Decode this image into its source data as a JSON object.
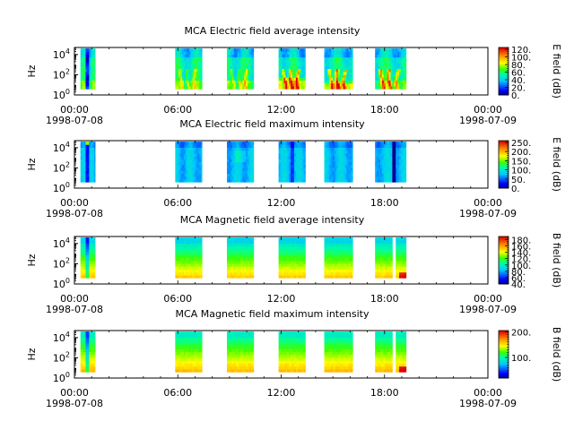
{
  "chart_data": [
    {
      "type": "heatmap",
      "title": "MCA  Electric field average intensity",
      "ylabel": "Hz",
      "y_ticks": [
        {
          "base": "10",
          "exp": "0"
        },
        {
          "base": "10",
          "exp": "2"
        },
        {
          "base": "10",
          "exp": "4"
        }
      ],
      "ylim_log10": [
        0,
        4.7
      ],
      "x_ticks": [
        "00:00",
        "06:00",
        "12:00",
        "18:00",
        "00:00"
      ],
      "x_tick_hours": [
        0,
        6,
        12,
        18,
        24
      ],
      "x_dates": [
        "1998-07-08",
        "1998-07-09"
      ],
      "colorbar": {
        "label": "E field (dB)",
        "min": 0,
        "max": 125,
        "ticks": [
          "0.",
          "20.",
          "40.",
          "60.",
          "80.",
          "100.",
          "120."
        ],
        "tick_values": [
          0,
          20,
          40,
          60,
          80,
          100,
          120
        ]
      },
      "data_bands_hours": [
        [
          0.35,
          1.2
        ],
        [
          5.85,
          7.4
        ],
        [
          8.85,
          10.4
        ],
        [
          11.85,
          13.4
        ],
        [
          14.5,
          16.15
        ],
        [
          17.45,
          19.25
        ]
      ],
      "freq_range_log10": [
        0.6,
        4.6
      ],
      "pattern": "electric-average"
    },
    {
      "type": "heatmap",
      "title": "MCA  Electric field maximum intensity",
      "ylabel": "Hz",
      "y_ticks": [
        {
          "base": "10",
          "exp": "0"
        },
        {
          "base": "10",
          "exp": "2"
        },
        {
          "base": "10",
          "exp": "4"
        }
      ],
      "ylim_log10": [
        0,
        4.7
      ],
      "x_ticks": [
        "00:00",
        "06:00",
        "12:00",
        "18:00",
        "00:00"
      ],
      "x_tick_hours": [
        0,
        6,
        12,
        18,
        24
      ],
      "x_dates": [
        "1998-07-08",
        "1998-07-09"
      ],
      "colorbar": {
        "label": "E field (dB)",
        "min": 0,
        "max": 260,
        "ticks": [
          "0.",
          "50.",
          "100.",
          "150.",
          "200.",
          "250."
        ],
        "tick_values": [
          0,
          50,
          100,
          150,
          200,
          250
        ]
      },
      "data_bands_hours": [
        [
          0.35,
          1.2
        ],
        [
          5.85,
          7.4
        ],
        [
          8.85,
          10.4
        ],
        [
          11.85,
          13.4
        ],
        [
          14.5,
          16.15
        ],
        [
          17.45,
          19.25
        ]
      ],
      "freq_range_log10": [
        0.6,
        4.6
      ],
      "pattern": "electric-maximum"
    },
    {
      "type": "heatmap",
      "title": "MCA  Magnetic field average intensity",
      "ylabel": "Hz",
      "y_ticks": [
        {
          "base": "10",
          "exp": "0"
        },
        {
          "base": "10",
          "exp": "2"
        },
        {
          "base": "10",
          "exp": "4"
        }
      ],
      "ylim_log10": [
        0,
        4.7
      ],
      "x_ticks": [
        "00:00",
        "06:00",
        "12:00",
        "18:00",
        "00:00"
      ],
      "x_tick_hours": [
        0,
        6,
        12,
        18,
        24
      ],
      "x_dates": [
        "1998-07-08",
        "1998-07-09"
      ],
      "colorbar": {
        "label": "B field (dB)",
        "min": 40,
        "max": 190,
        "ticks": [
          "40.",
          "60.",
          "80.",
          "100.",
          "120.",
          "140.",
          "160.",
          "180."
        ],
        "tick_values": [
          40,
          60,
          80,
          100,
          120,
          140,
          160,
          180
        ]
      },
      "data_bands_hours": [
        [
          0.35,
          1.2
        ],
        [
          5.85,
          7.4
        ],
        [
          8.85,
          10.4
        ],
        [
          11.85,
          13.4
        ],
        [
          14.5,
          16.15
        ],
        [
          17.45,
          19.25
        ]
      ],
      "freq_range_log10": [
        0.6,
        4.6
      ],
      "pattern": "magnetic-average"
    },
    {
      "type": "heatmap",
      "title": "MCA  Magnetic field maximum intensity",
      "ylabel": "Hz",
      "y_ticks": [
        {
          "base": "10",
          "exp": "0"
        },
        {
          "base": "10",
          "exp": "2"
        },
        {
          "base": "10",
          "exp": "4"
        }
      ],
      "ylim_log10": [
        0,
        4.7
      ],
      "x_ticks": [
        "00:00",
        "06:00",
        "12:00",
        "18:00",
        "00:00"
      ],
      "x_tick_hours": [
        0,
        6,
        12,
        18,
        24
      ],
      "x_dates": [
        "1998-07-08",
        "1998-07-09"
      ],
      "colorbar": {
        "label": "B field (dB)",
        "min": 20,
        "max": 205,
        "ticks": [
          "100.",
          "200."
        ],
        "tick_values": [
          100,
          200
        ]
      },
      "data_bands_hours": [
        [
          0.35,
          1.2
        ],
        [
          5.85,
          7.4
        ],
        [
          8.85,
          10.4
        ],
        [
          11.85,
          13.4
        ],
        [
          14.5,
          16.15
        ],
        [
          17.45,
          19.25
        ]
      ],
      "freq_range_log10": [
        0.6,
        4.6
      ],
      "pattern": "magnetic-maximum"
    }
  ]
}
